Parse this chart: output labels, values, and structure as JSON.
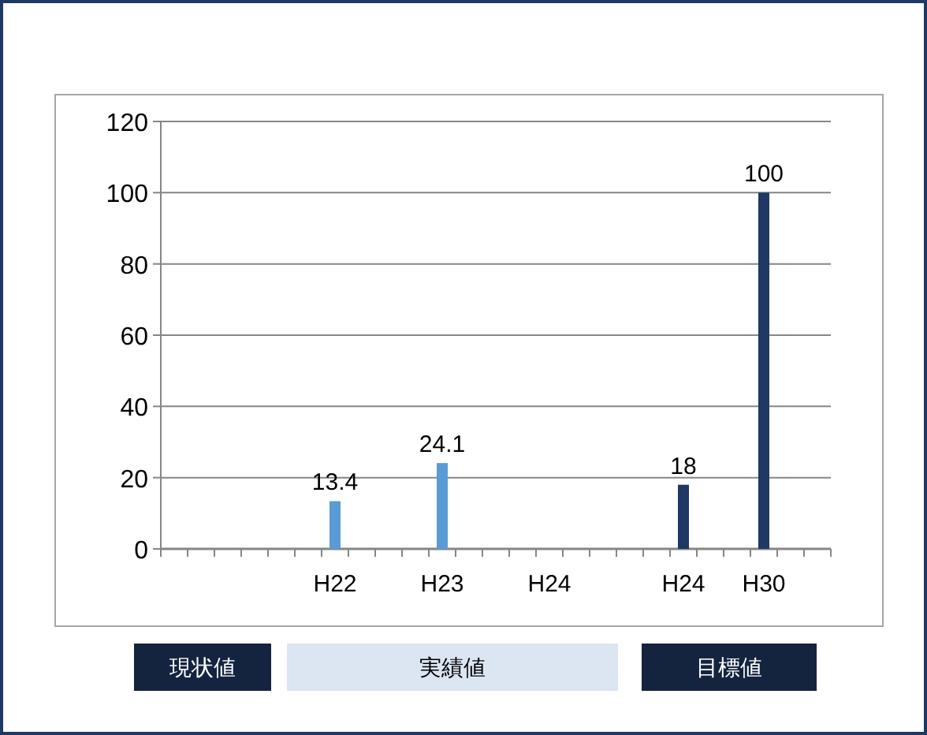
{
  "chart_data": {
    "type": "bar",
    "categories": [
      null,
      null,
      null,
      null,
      null,
      null,
      "H22",
      null,
      null,
      null,
      "H23",
      null,
      null,
      null,
      "H24",
      null,
      null,
      null,
      null,
      "H24",
      null,
      null,
      "H30",
      null,
      null
    ],
    "values": [
      null,
      null,
      null,
      null,
      null,
      null,
      13.4,
      null,
      null,
      null,
      24.1,
      null,
      null,
      null,
      null,
      null,
      null,
      null,
      null,
      18,
      null,
      null,
      100,
      null,
      null
    ],
    "colors": [
      null,
      null,
      null,
      null,
      null,
      null,
      "#5b9bd5",
      null,
      null,
      null,
      "#5b9bd5",
      null,
      null,
      null,
      null,
      null,
      null,
      null,
      null,
      "#1f3864",
      null,
      null,
      "#1f3864",
      null,
      null
    ],
    "ylim": [
      0,
      120
    ],
    "yticks": [
      0,
      20,
      40,
      60,
      80,
      100,
      120
    ],
    "grid": "y",
    "data_labels": true,
    "annotations": [
      "現状値",
      "実績値",
      "目標値"
    ]
  }
}
